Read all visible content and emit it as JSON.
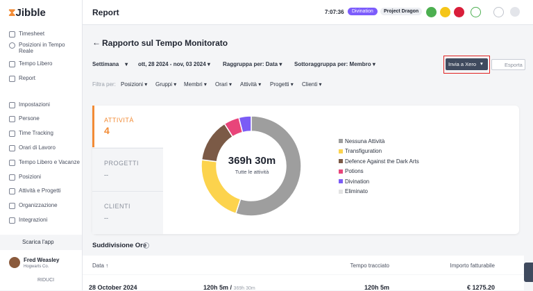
{
  "sidebar": {
    "logo": "Jibble",
    "menu": [
      "Timesheet",
      "Posizioni in Tempo Reale",
      "Tempo Libero",
      "Report"
    ],
    "settings_menu": [
      "Impostazioni",
      "Persone",
      "Time Tracking",
      "Orari di Lavoro",
      "Tempo Libero e Vacanze",
      "Posizioni",
      "Attività e Progetti",
      "Organizzazione",
      "Integrazioni"
    ],
    "download": "Scarica l'app",
    "user": {
      "name": "Fred Weasley",
      "org": "Hogwarts Co."
    },
    "collapse": "RIDUCI"
  },
  "topbar": {
    "title": "Report",
    "time": "7:07:36",
    "badge": "Divination",
    "project": "Project Dragon"
  },
  "report": {
    "title": "Rapporto sul Tempo Monitorato",
    "period": "Settimana",
    "range": "ott, 28 2024 - nov, 03 2024",
    "group": "Raggruppa per: Data",
    "subgroup": "Sottoraggruppa per: Membro",
    "send": "Invia a Xero",
    "export": "Esporta",
    "filter_label": "Filtra per:",
    "filters": [
      "Posizioni",
      "Gruppi",
      "Membri",
      "Orari",
      "Attività",
      "Progetti",
      "Clienti"
    ]
  },
  "tabs": [
    {
      "label": "ATTIVITÀ",
      "value": "4"
    },
    {
      "label": "PROGETTI",
      "value": "--"
    },
    {
      "label": "CLIENTI",
      "value": "--"
    }
  ],
  "donut": {
    "total": "369h 30m",
    "caption": "Tutte le attività",
    "segments": [
      {
        "name": "Nessuna Attività",
        "color": "#9e9e9e",
        "value": 55
      },
      {
        "name": "Transfiguration",
        "color": "#fcd34d",
        "value": 22
      },
      {
        "name": "Defence Against the Dark Arts",
        "color": "#7b5a46",
        "value": 14
      },
      {
        "name": "Potions",
        "color": "#e8457a",
        "value": 5
      },
      {
        "name": "Divination",
        "color": "#7b5cf5",
        "value": 4
      },
      {
        "name": "Eliminato",
        "color": "#e3e3e3",
        "value": 0
      }
    ]
  },
  "breakdown": {
    "title": "Suddivisione Ore",
    "columns": [
      "Data",
      "Tempo tracciato",
      "Importo fatturabile"
    ],
    "rows": [
      [
        "28 October 2024",
        "120h 5m /",
        "369h 30m",
        "120h 5m",
        "€ 1275.20"
      ]
    ]
  }
}
